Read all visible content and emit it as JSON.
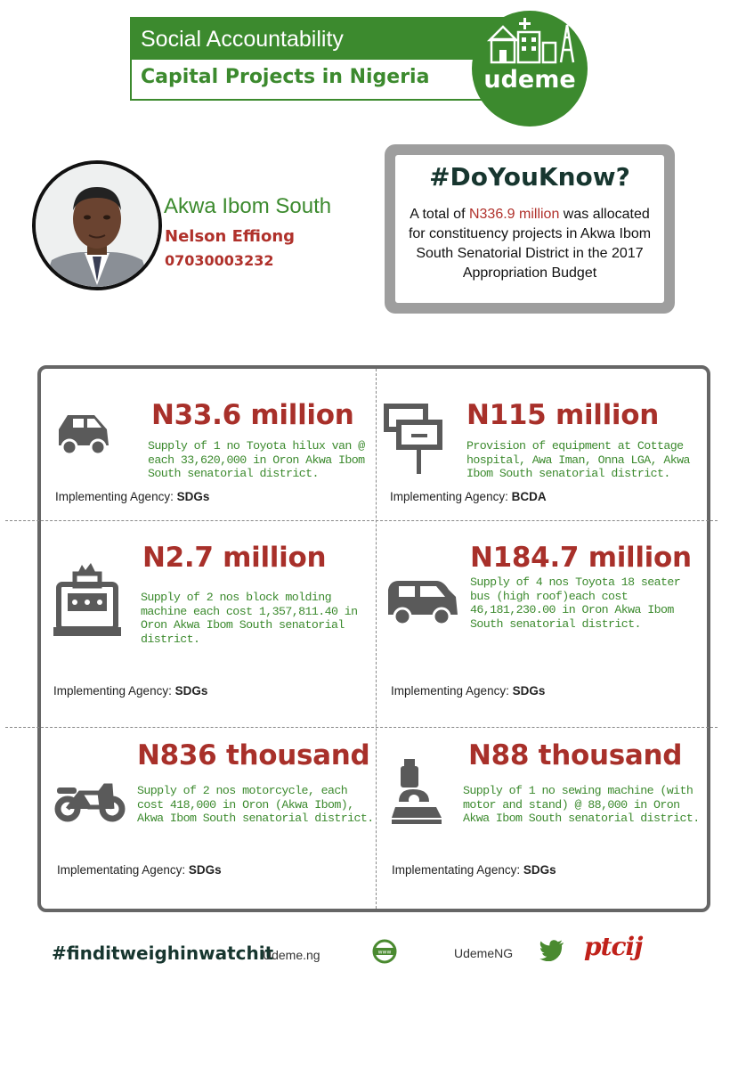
{
  "header": {
    "top_title": "Social Accountability",
    "bottom_title": "Capital Projects in Nigeria",
    "logo_text": "udeme"
  },
  "profile": {
    "constituency": "Akwa Ibom South",
    "senator": "Nelson Effiong",
    "phone": "07030003232"
  },
  "did_you_know": {
    "title": "#DoYouKnow?",
    "text_before": "A total of ",
    "highlight": "N336.9 million",
    "text_after": " was allocated for constituency projects in Akwa Ibom South Senatorial District in the 2017 Appropriation Budget"
  },
  "projects": [
    {
      "icon": "car-icon",
      "amount": "N33.6 million",
      "description": "Supply of 1 no Toyota hilux van @ each 33,620,000 in Oron Akwa Ibom South senatorial district.",
      "agency_label": "Implementing Agency:",
      "agency": "SDGs"
    },
    {
      "icon": "hospital-sign-icon",
      "amount": "N115 million",
      "description": "Provision of equipment at Cottage hospital, Awa Iman, Onna LGA, Akwa Ibom South senatorial district.",
      "agency_label": "Implementing Agency:",
      "agency": "BCDA"
    },
    {
      "icon": "block-molding-machine-icon",
      "amount": "N2.7 million",
      "description": "Supply of 2 nos block molding machine each cost 1,357,811.40 in Oron Akwa Ibom South senatorial district.",
      "agency_label": "Implementing Agency:",
      "agency": "SDGs"
    },
    {
      "icon": "bus-icon",
      "amount": "N184.7 million",
      "description": "Supply of 4 nos Toyota 18 seater bus (high roof)each cost 46,181,230.00 in Oron Akwa Ibom South senatorial district.",
      "agency_label": "Implementing Agency:",
      "agency": "SDGs"
    },
    {
      "icon": "motorcycle-icon",
      "amount": "N836 thousand",
      "description": "Supply of 2 nos motorcycle, each cost 418,000 in Oron (Akwa Ibom), Akwa Ibom South senatorial district.",
      "agency_label": "Implementating Agency:",
      "agency": "SDGs"
    },
    {
      "icon": "sewing-machine-icon",
      "amount": "N88 thousand",
      "description": "Supply of 1 no sewing machine (with motor and stand) @ 88,000 in Oron Akwa Ibom South senatorial district.",
      "agency_label": "Implementating Agency:",
      "agency": "SDGs"
    }
  ],
  "footer": {
    "hashtag": "#finditweighinwatchit",
    "website": "Udeme.ng",
    "handle": "UdemeNG",
    "partner_logo": "ptcij"
  },
  "colors": {
    "green": "#3c8a2e",
    "red": "#a8302a",
    "grey": "#666666"
  }
}
